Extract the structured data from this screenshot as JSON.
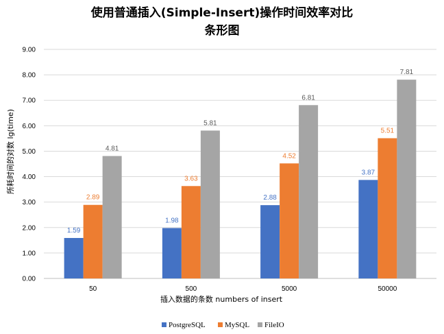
{
  "chart_data": {
    "type": "bar",
    "title_line1": "使用普通插入(Simple-Insert)操作时间效率对比",
    "title_line2": "条形图",
    "xlabel": "插入数据的条数 numbers of insert",
    "ylabel": "所耗时间的对数 lg(time)",
    "categories": [
      "50",
      "500",
      "5000",
      "50000"
    ],
    "ylim": [
      0,
      9
    ],
    "yticks": [
      "0.00",
      "1.00",
      "2.00",
      "3.00",
      "4.00",
      "5.00",
      "6.00",
      "7.00",
      "8.00",
      "9.00"
    ],
    "grid": true,
    "legend_position": "bottom",
    "series": [
      {
        "name": "PostgreSQL",
        "color": "#4472C4",
        "values": [
          1.59,
          1.98,
          2.88,
          3.87
        ],
        "labels": [
          "1.59",
          "1.98",
          "2.88",
          "3.87"
        ]
      },
      {
        "name": "MySQL",
        "color": "#ED7D31",
        "values": [
          2.89,
          3.63,
          4.52,
          5.51
        ],
        "labels": [
          "2.89",
          "3.63",
          "4.52",
          "5.51"
        ]
      },
      {
        "name": "FileIO",
        "color": "#A5A5A5",
        "values": [
          4.81,
          5.81,
          6.81,
          7.81
        ],
        "labels": [
          "4.81",
          "5.81",
          "6.81",
          "7.81"
        ]
      }
    ]
  }
}
